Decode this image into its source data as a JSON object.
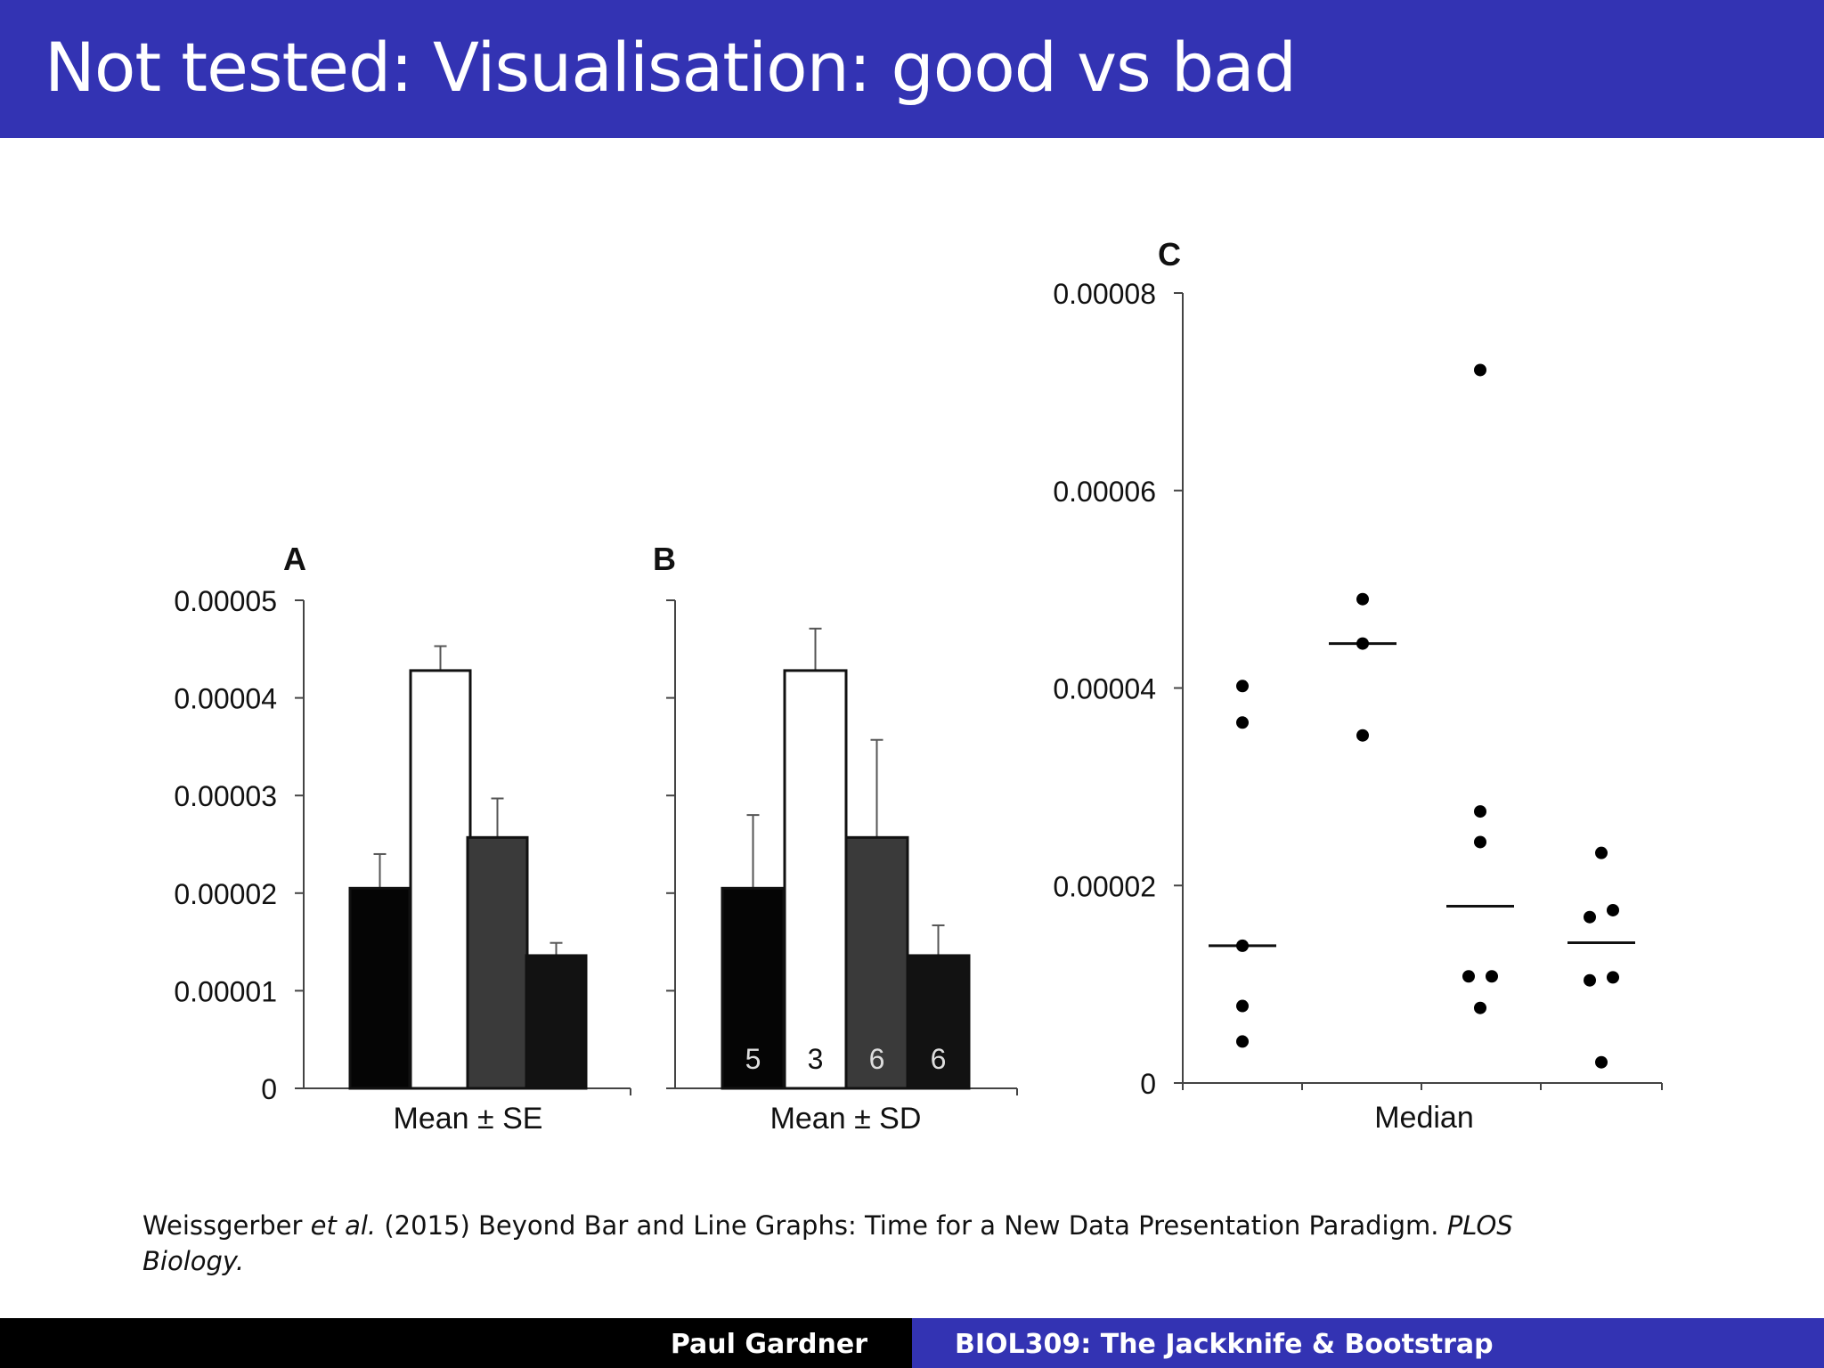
{
  "slide": {
    "title": "Not tested: Visualisation: good vs bad"
  },
  "colors": {
    "accent": "#3333b3",
    "footer_dark": "#000000",
    "bar_black": "#050505",
    "bar_white": "#ffffff",
    "bar_dark_gray": "#3a3a3a",
    "bar_near_black": "#121212"
  },
  "chart_data": [
    {
      "panel": "A",
      "type": "bar",
      "title": "",
      "xlabel": "Mean ± SE",
      "ylabel": "",
      "ylim": [
        0,
        5e-05
      ],
      "yticks": [
        "0",
        "0.00001",
        "0.00002",
        "0.00003",
        "0.00004",
        "0.00005"
      ],
      "ytick_values": [
        0,
        1e-05,
        2e-05,
        3e-05,
        4e-05,
        5e-05
      ],
      "values": [
        2.05e-05,
        4.28e-05,
        2.57e-05,
        1.36e-05
      ],
      "errors": [
        3.5e-06,
        2.5e-06,
        4e-06,
        1.3e-06
      ],
      "bar_colors": [
        "#050505",
        "#ffffff",
        "#3a3a3a",
        "#121212"
      ]
    },
    {
      "panel": "B",
      "type": "bar",
      "title": "",
      "xlabel": "Mean ± SD",
      "ylabel": "",
      "ylim": [
        0,
        5e-05
      ],
      "values": [
        2.05e-05,
        4.28e-05,
        2.57e-05,
        1.36e-05
      ],
      "errors": [
        7.5e-06,
        4.3e-06,
        1e-05,
        3.1e-06
      ],
      "n_labels": [
        "5",
        "3",
        "6",
        "6"
      ],
      "bar_colors": [
        "#050505",
        "#ffffff",
        "#3a3a3a",
        "#121212"
      ]
    },
    {
      "panel": "C",
      "type": "scatter",
      "title": "",
      "xlabel": "Median",
      "ylabel": "",
      "ylim": [
        0,
        8e-05
      ],
      "yticks": [
        "0",
        "0.00002",
        "0.00004",
        "0.00006",
        "0.00008"
      ],
      "ytick_values": [
        0,
        2e-05,
        4e-05,
        6e-05,
        8e-05
      ],
      "groups": [
        {
          "points": [
            4.02e-05,
            3.65e-05,
            1.39e-05,
            7.8e-06,
            4.2e-06
          ],
          "median": 1.39e-05
        },
        {
          "points": [
            4.9e-05,
            4.45e-05,
            3.52e-05
          ],
          "median": 4.45e-05
        },
        {
          "points": [
            7.22e-05,
            2.75e-05,
            2.44e-05,
            1.08e-05,
            1.08e-05,
            7.6e-06
          ],
          "median": 1.79e-05
        },
        {
          "points": [
            2.33e-05,
            1.68e-05,
            1.75e-05,
            1.04e-05,
            1.07e-05,
            2.1e-06
          ],
          "median": 1.42e-05
        }
      ]
    }
  ],
  "citation": {
    "authors": "Weissgerber",
    "etal": "et al.",
    "rest": " (2015) Beyond Bar and Line Graphs: Time for a New Data Presentation Paradigm. ",
    "journal": "PLOS Biology."
  },
  "footer": {
    "author": "Paul Gardner",
    "course": "BIOL309: The Jackknife & Bootstrap"
  }
}
